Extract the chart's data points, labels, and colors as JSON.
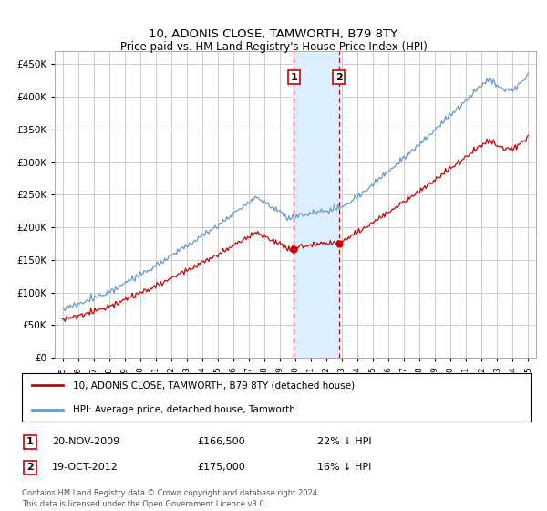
{
  "title": "10, ADONIS CLOSE, TAMWORTH, B79 8TY",
  "subtitle": "Price paid vs. HM Land Registry's House Price Index (HPI)",
  "ylim": [
    0,
    470000
  ],
  "yticks": [
    0,
    50000,
    100000,
    150000,
    200000,
    250000,
    300000,
    350000,
    400000,
    450000
  ],
  "sale1_date_num": 2009.9,
  "sale2_date_num": 2012.8,
  "sale1_price": 166500,
  "sale2_price": 175000,
  "legend_red": "10, ADONIS CLOSE, TAMWORTH, B79 8TY (detached house)",
  "legend_blue": "HPI: Average price, detached house, Tamworth",
  "footer": "Contains HM Land Registry data © Crown copyright and database right 2024.\nThis data is licensed under the Open Government Licence v3.0.",
  "highlight_color": "#ddeeff",
  "red_color": "#cc0000",
  "blue_color": "#6699cc",
  "grid_color": "#cccccc",
  "sale_info": [
    [
      "1",
      "20-NOV-2009",
      "£166,500",
      "22% ↓ HPI"
    ],
    [
      "2",
      "19-OCT-2012",
      "£175,000",
      "16% ↓ HPI"
    ]
  ]
}
